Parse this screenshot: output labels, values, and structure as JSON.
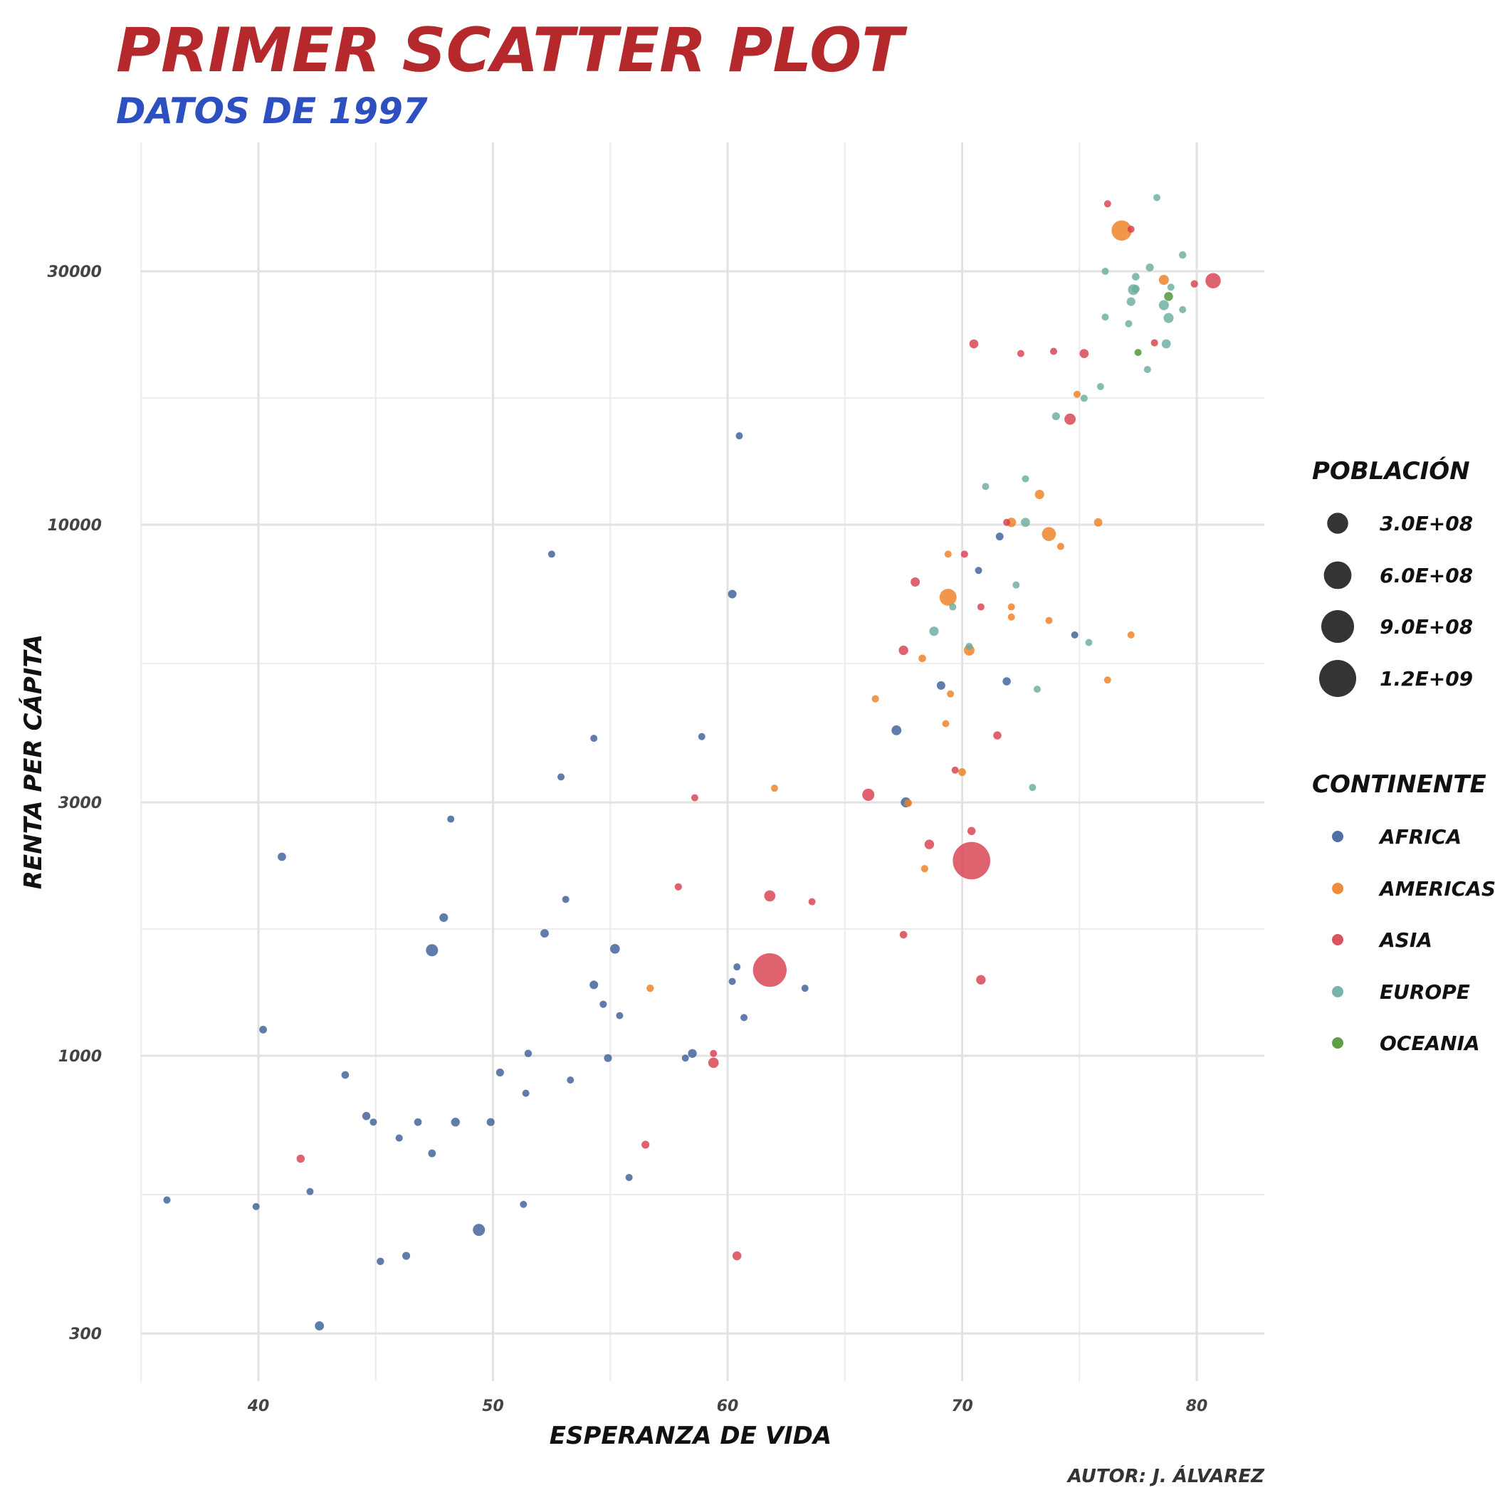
{
  "chart_data": {
    "type": "scatter",
    "title": "PRIMER SCATTER PLOT",
    "subtitle": "DATOS DE 1997",
    "xlabel": "ESPERANZA DE VIDA",
    "ylabel": "RENTA PER CÁPITA",
    "caption": "AUTOR: J. ÁLVAREZ",
    "xlim": [
      34.5,
      82.5
    ],
    "ylim": [
      240,
      49000
    ],
    "y_scale": "log",
    "grid": true,
    "x_ticks": [
      40,
      50,
      60,
      70,
      80
    ],
    "x_tick_labels": [
      "40",
      "50",
      "60",
      "70",
      "80"
    ],
    "y_ticks": [
      300,
      1000,
      3000,
      10000,
      30000
    ],
    "y_tick_labels": [
      "300",
      "1000",
      "3000",
      "10000",
      "30000"
    ],
    "legend_position": "right",
    "size_legend": {
      "title": "POBLACIÓN",
      "values": [
        300000000,
        600000000,
        900000000,
        1200000000
      ],
      "labels": [
        "3.0E+08",
        "6.0E+08",
        "9.0E+08",
        "1.2E+09"
      ]
    },
    "color_legend": {
      "title": "CONTINENTE",
      "labels": [
        "AFRICA",
        "AMERICAS",
        "ASIA",
        "EUROPE",
        "OCEANIA"
      ],
      "colors": [
        "#3d5f99",
        "#ee8024",
        "#d8404f",
        "#6aaca0",
        "#4c9434"
      ]
    },
    "series": [
      {
        "name": "AFRICA",
        "color": "#3d5f99",
        "points": [
          [
            60.5,
            14700,
            1200000
          ],
          [
            52.5,
            8800,
            1200000
          ],
          [
            60.2,
            7400,
            15000000
          ],
          [
            54.3,
            3960,
            1500000
          ],
          [
            58.9,
            3990,
            1100000
          ],
          [
            52.9,
            3350,
            3500000
          ],
          [
            48.2,
            2790,
            2200000
          ],
          [
            41.0,
            2370,
            13000000
          ],
          [
            67.6,
            3000,
            30000000
          ],
          [
            67.2,
            4100,
            28000000
          ],
          [
            69.1,
            4980,
            15000000
          ],
          [
            71.9,
            5070,
            12000000
          ],
          [
            74.8,
            6200,
            1100000
          ],
          [
            70.7,
            8200,
            1200000
          ],
          [
            71.6,
            9500,
            9000000
          ],
          [
            53.1,
            1970,
            2200000
          ],
          [
            47.9,
            1820,
            16000000
          ],
          [
            52.2,
            1700,
            14000000
          ],
          [
            47.4,
            1580,
            60000000
          ],
          [
            55.2,
            1590,
            26000000
          ],
          [
            60.4,
            1470,
            2500000
          ],
          [
            63.3,
            1340,
            1200000
          ],
          [
            54.3,
            1360,
            15000000
          ],
          [
            54.7,
            1250,
            6000000
          ],
          [
            60.2,
            1380,
            5000000
          ],
          [
            55.4,
            1190,
            3000000
          ],
          [
            60.7,
            1180,
            2000000
          ],
          [
            40.2,
            1120,
            8500000
          ],
          [
            51.5,
            1010,
            7000000
          ],
          [
            50.3,
            930,
            10000000
          ],
          [
            54.9,
            990,
            10000000
          ],
          [
            58.5,
            1010,
            17000000
          ],
          [
            58.2,
            990,
            2000000
          ],
          [
            43.7,
            920,
            8000000
          ],
          [
            53.3,
            900,
            3000000
          ],
          [
            51.4,
            850,
            4500000
          ],
          [
            44.6,
            770,
            12000000
          ],
          [
            44.9,
            750,
            5000000
          ],
          [
            46.8,
            750,
            8000000
          ],
          [
            48.4,
            750,
            17000000
          ],
          [
            49.9,
            750,
            10000000
          ],
          [
            46.0,
            700,
            6000000
          ],
          [
            47.4,
            655,
            9000000
          ],
          [
            55.8,
            590,
            2500000
          ],
          [
            42.2,
            555,
            2000000
          ],
          [
            36.1,
            535,
            6000000
          ],
          [
            39.9,
            520,
            5000000
          ],
          [
            51.3,
            525,
            5000000
          ],
          [
            49.4,
            470,
            60000000
          ],
          [
            46.3,
            420,
            10000000
          ],
          [
            45.2,
            410,
            7000000
          ],
          [
            42.6,
            310,
            20000000
          ]
        ]
      },
      {
        "name": "AMERICAS",
        "color": "#ee8024",
        "points": [
          [
            76.8,
            35800,
            272000000
          ],
          [
            78.6,
            28900,
            30000000
          ],
          [
            74.9,
            17600,
            3500000
          ],
          [
            73.3,
            11400,
            22000000
          ],
          [
            72.1,
            10100,
            23000000
          ],
          [
            73.7,
            9600,
            95000000
          ],
          [
            75.8,
            10100,
            14000000
          ],
          [
            74.2,
            9100,
            3500000
          ],
          [
            69.4,
            8800,
            1500000
          ],
          [
            69.4,
            7300,
            168000000
          ],
          [
            72.1,
            7000,
            4000000
          ],
          [
            72.1,
            6700,
            4000000
          ],
          [
            73.7,
            6600,
            2500000
          ],
          [
            77.2,
            6200,
            3500000
          ],
          [
            70.3,
            5800,
            38000000
          ],
          [
            68.3,
            5600,
            8000000
          ],
          [
            76.2,
            5100,
            3000000
          ],
          [
            69.5,
            4800,
            3000000
          ],
          [
            66.3,
            4700,
            6000000
          ],
          [
            69.3,
            4220,
            4000000
          ],
          [
            70.0,
            3420,
            9000000
          ],
          [
            62.0,
            3190,
            5000000
          ],
          [
            67.7,
            2990,
            8000000
          ],
          [
            68.4,
            2250,
            6000000
          ],
          [
            56.7,
            1340,
            7000000
          ]
        ]
      },
      {
        "name": "ASIA",
        "color": "#d8404f",
        "points": [
          [
            76.2,
            40200,
            400000
          ],
          [
            77.2,
            36000,
            3500000
          ],
          [
            80.7,
            28800,
            125000000
          ],
          [
            79.9,
            28400,
            6500000
          ],
          [
            70.5,
            21900,
            19000000
          ],
          [
            72.5,
            21000,
            2000000
          ],
          [
            73.9,
            21200,
            1500000
          ],
          [
            75.2,
            21000,
            20000000
          ],
          [
            78.2,
            22000,
            6000000
          ],
          [
            74.6,
            15800,
            46000000
          ],
          [
            71.9,
            10100,
            2000000
          ],
          [
            70.1,
            8800,
            6000000
          ],
          [
            68.0,
            7800,
            21000000
          ],
          [
            70.8,
            7000,
            2000000
          ],
          [
            67.5,
            5800,
            24000000
          ],
          [
            71.5,
            4010,
            12000000
          ],
          [
            69.7,
            3450,
            3000000
          ],
          [
            58.6,
            3060,
            4000000
          ],
          [
            66.0,
            3100,
            60000000
          ],
          [
            70.4,
            2650,
            12000000
          ],
          [
            68.6,
            2500,
            25000000
          ],
          [
            70.4,
            2330,
            1230000000
          ],
          [
            57.9,
            2080,
            6000000
          ],
          [
            61.8,
            2000,
            45000000
          ],
          [
            63.6,
            1950,
            2500000
          ],
          [
            67.5,
            1690,
            8000000
          ],
          [
            61.8,
            1450,
            960000000
          ],
          [
            70.8,
            1390,
            24000000
          ],
          [
            59.4,
            1010,
            2000000
          ],
          [
            59.4,
            970,
            35000000
          ],
          [
            56.5,
            680,
            10000000
          ],
          [
            41.8,
            640,
            12000000
          ],
          [
            60.4,
            420,
            18000000
          ]
        ]
      },
      {
        "name": "EUROPE",
        "color": "#6aaca0",
        "points": [
          [
            78.3,
            41300,
            4500000
          ],
          [
            79.4,
            32200,
            7000000
          ],
          [
            76.1,
            30000,
            5000000
          ],
          [
            78.0,
            30500,
            10000000
          ],
          [
            77.4,
            29300,
            8000000
          ],
          [
            78.9,
            28000,
            3000000
          ],
          [
            77.3,
            27700,
            38000000
          ],
          [
            77.4,
            27800,
            10000000
          ],
          [
            77.2,
            26300,
            16000000
          ],
          [
            78.6,
            25900,
            30000000
          ],
          [
            79.4,
            25400,
            5000000
          ],
          [
            76.1,
            24600,
            5000000
          ],
          [
            77.1,
            23900,
            5000000
          ],
          [
            78.8,
            24500,
            30000000
          ],
          [
            78.7,
            21900,
            20000000
          ],
          [
            77.9,
            19600,
            3000000
          ],
          [
            75.9,
            18200,
            5000000
          ],
          [
            75.2,
            17300,
            3000000
          ],
          [
            74.0,
            16000,
            10000000
          ],
          [
            71.0,
            11800,
            4500000
          ],
          [
            72.7,
            12200,
            4500000
          ],
          [
            72.7,
            10100,
            20000000
          ],
          [
            72.3,
            7700,
            5000000
          ],
          [
            69.6,
            7000,
            5000000
          ],
          [
            68.8,
            6300,
            22000000
          ],
          [
            75.4,
            6000,
            2500000
          ],
          [
            70.3,
            5900,
            2000000
          ],
          [
            73.2,
            4900,
            4000000
          ],
          [
            73.0,
            3200,
            3500000
          ]
        ]
      },
      {
        "name": "OCEANIA",
        "color": "#4c9434",
        "points": [
          [
            78.8,
            26900,
            18500000
          ],
          [
            77.5,
            21100,
            3700000
          ]
        ]
      }
    ]
  }
}
